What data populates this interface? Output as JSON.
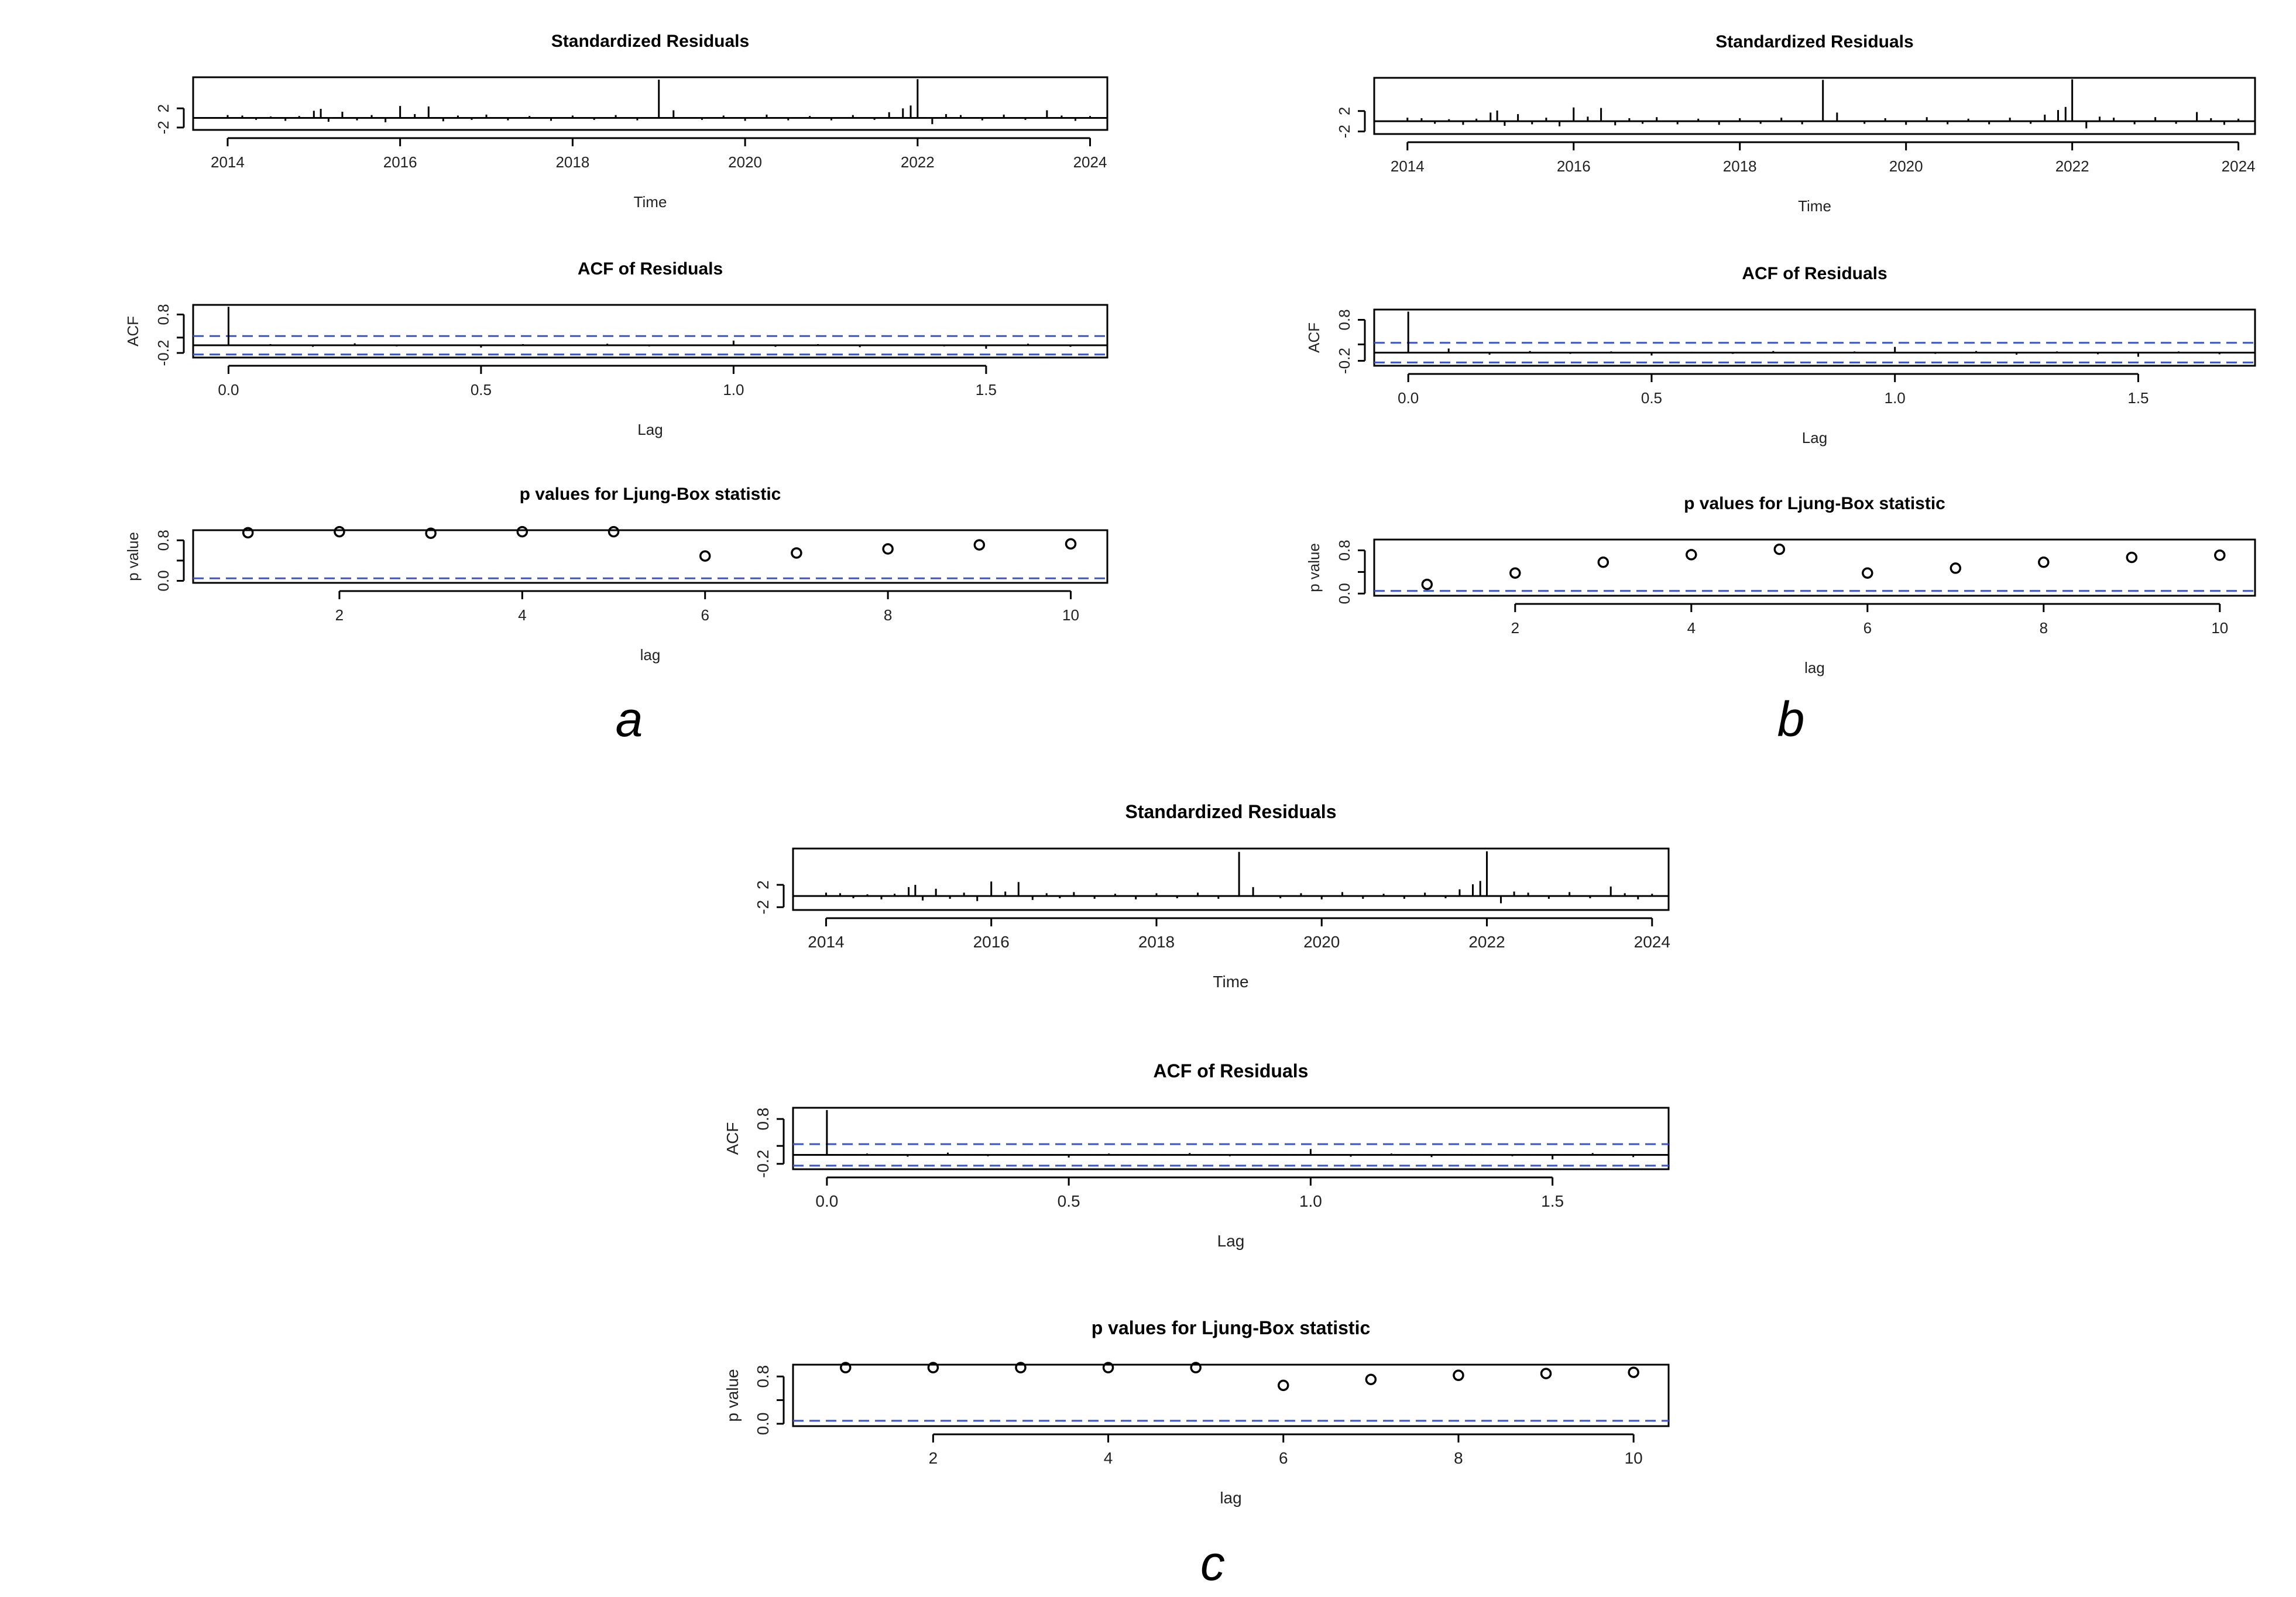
{
  "chart_data": [
    {
      "panel_label": "a",
      "plots": [
        {
          "type": "bar",
          "kind": "residuals",
          "title": "Standardized Residuals",
          "xlabel": "Time",
          "ylabel": "",
          "xlim": [
            2013.6,
            2024.2
          ],
          "ylim": [
            -2.5,
            8.5
          ],
          "xticks": [
            2014,
            2016,
            2018,
            2020,
            2022,
            2024
          ],
          "xtick_labels": [
            "2014",
            "2016",
            "2018",
            "2020",
            "2022",
            "2024"
          ],
          "yticks": [
            -2,
            2
          ],
          "ytick_labels": [
            "-2",
            "2"
          ],
          "spikes": {
            "x": [
              2014.0,
              2014.17,
              2014.33,
              2014.5,
              2014.67,
              2014.83,
              2015.0,
              2015.08,
              2015.17,
              2015.33,
              2015.5,
              2015.67,
              2015.83,
              2016.0,
              2016.17,
              2016.33,
              2016.5,
              2016.67,
              2016.83,
              2017.0,
              2017.25,
              2017.5,
              2017.75,
              2018.0,
              2018.25,
              2018.5,
              2018.75,
              2019.0,
              2019.17,
              2019.5,
              2019.75,
              2020.0,
              2020.25,
              2020.5,
              2020.75,
              2021.0,
              2021.25,
              2021.5,
              2021.67,
              2021.83,
              2021.92,
              2022.0,
              2022.17,
              2022.33,
              2022.5,
              2022.75,
              2023.0,
              2023.25,
              2023.5,
              2023.67,
              2023.83,
              2024.0
            ],
            "y": [
              0.6,
              0.5,
              -0.4,
              0.3,
              -0.6,
              0.4,
              1.5,
              1.9,
              -0.8,
              1.3,
              -0.5,
              0.6,
              -0.9,
              2.5,
              0.8,
              2.4,
              -0.7,
              0.5,
              -0.4,
              0.7,
              -0.5,
              0.4,
              -0.6,
              0.5,
              -0.4,
              0.6,
              -0.5,
              8.0,
              1.6,
              -0.4,
              0.5,
              -0.6,
              0.7,
              -0.5,
              0.4,
              -0.5,
              0.6,
              -0.4,
              1.2,
              2.0,
              2.6,
              8.1,
              -1.3,
              0.8,
              0.6,
              -0.5,
              0.7,
              -0.4,
              1.6,
              0.5,
              -0.6,
              0.4
            ]
          }
        },
        {
          "type": "bar",
          "kind": "acf",
          "title": "ACF of Residuals",
          "xlabel": "Lag",
          "ylabel": "ACF",
          "xlim": [
            -0.07,
            1.74
          ],
          "ylim": [
            -0.32,
            1.05
          ],
          "xticks": [
            0.0,
            0.5,
            1.0,
            1.5
          ],
          "xtick_labels": [
            "0.0",
            "0.5",
            "1.0",
            "1.5"
          ],
          "yticks": [
            -0.2,
            0.2,
            0.8
          ],
          "ytick_labels": [
            "-0.2",
            "",
            "0.8"
          ],
          "ci": 0.24,
          "spikes": {
            "x": [
              0.0,
              0.083,
              0.167,
              0.25,
              0.333,
              0.417,
              0.5,
              0.583,
              0.667,
              0.75,
              0.833,
              0.917,
              1.0,
              1.083,
              1.167,
              1.25,
              1.333,
              1.417,
              1.5,
              1.583,
              1.667
            ],
            "y": [
              1.0,
              0.03,
              -0.04,
              0.05,
              -0.03,
              0.02,
              -0.06,
              0.03,
              -0.02,
              0.04,
              -0.03,
              0.02,
              0.12,
              -0.04,
              0.03,
              -0.05,
              0.02,
              -0.03,
              -0.09,
              0.04,
              -0.04
            ]
          }
        },
        {
          "type": "scatter",
          "kind": "ljungbox",
          "title": "p values for Ljung-Box statistic",
          "xlabel": "lag",
          "ylabel": "p value",
          "xlim": [
            0.4,
            10.4
          ],
          "ylim": [
            -0.04,
            1.0
          ],
          "xticks": [
            2,
            4,
            6,
            8,
            10
          ],
          "xtick_labels": [
            "2",
            "4",
            "6",
            "8",
            "10"
          ],
          "yticks": [
            0.0,
            0.4,
            0.8
          ],
          "ytick_labels": [
            "0.0",
            "",
            "0.8"
          ],
          "ci": 0.05,
          "points": {
            "x": [
              1,
              2,
              3,
              4,
              5,
              6,
              7,
              8,
              9,
              10
            ],
            "y": [
              0.95,
              0.97,
              0.94,
              0.97,
              0.97,
              0.49,
              0.55,
              0.63,
              0.71,
              0.73
            ]
          }
        }
      ]
    },
    {
      "panel_label": "b",
      "plots": [
        {
          "type": "bar",
          "kind": "residuals",
          "title": "Standardized Residuals",
          "xlabel": "Time",
          "ylabel": "",
          "xlim": [
            2013.6,
            2024.2
          ],
          "ylim": [
            -2.5,
            8.5
          ],
          "xticks": [
            2014,
            2016,
            2018,
            2020,
            2022,
            2024
          ],
          "xtick_labels": [
            "2014",
            "2016",
            "2018",
            "2020",
            "2022",
            "2024"
          ],
          "yticks": [
            -2,
            2
          ],
          "ytick_labels": [
            "-2",
            "2"
          ],
          "spikes": {
            "x": [
              2014.0,
              2014.17,
              2014.33,
              2014.5,
              2014.67,
              2014.83,
              2015.0,
              2015.08,
              2015.17,
              2015.33,
              2015.5,
              2015.67,
              2015.83,
              2016.0,
              2016.17,
              2016.33,
              2016.5,
              2016.67,
              2016.83,
              2017.0,
              2017.25,
              2017.5,
              2017.75,
              2018.0,
              2018.25,
              2018.5,
              2018.75,
              2019.0,
              2019.17,
              2019.5,
              2019.75,
              2020.0,
              2020.25,
              2020.5,
              2020.75,
              2021.0,
              2021.25,
              2021.5,
              2021.67,
              2021.83,
              2021.92,
              2022.0,
              2022.17,
              2022.33,
              2022.5,
              2022.75,
              2023.0,
              2023.25,
              2023.5,
              2023.67,
              2023.83,
              2024.0
            ],
            "y": [
              0.7,
              0.6,
              -0.5,
              0.4,
              -0.7,
              0.5,
              1.7,
              2.1,
              -0.9,
              1.4,
              -0.6,
              0.7,
              -1.0,
              2.7,
              0.9,
              2.6,
              -0.8,
              0.6,
              -0.5,
              0.8,
              -0.6,
              0.5,
              -0.7,
              0.6,
              -0.5,
              0.7,
              -0.6,
              8.1,
              1.7,
              -0.5,
              0.6,
              -0.7,
              0.8,
              -0.6,
              0.5,
              -0.6,
              0.7,
              -0.5,
              1.3,
              2.2,
              2.8,
              8.2,
              -1.4,
              0.9,
              0.7,
              -0.6,
              0.8,
              -0.5,
              1.8,
              0.6,
              -0.7,
              0.5
            ]
          }
        },
        {
          "type": "bar",
          "kind": "acf",
          "title": "ACF of Residuals",
          "xlabel": "Lag",
          "ylabel": "ACF",
          "xlim": [
            -0.07,
            1.74
          ],
          "ylim": [
            -0.32,
            1.05
          ],
          "xticks": [
            0.0,
            0.5,
            1.0,
            1.5
          ],
          "xtick_labels": [
            "0.0",
            "0.5",
            "1.0",
            "1.5"
          ],
          "yticks": [
            -0.2,
            0.2,
            0.8
          ],
          "ytick_labels": [
            "-0.2",
            "",
            "0.8"
          ],
          "ci": 0.24,
          "spikes": {
            "x": [
              0.0,
              0.083,
              0.167,
              0.25,
              0.333,
              0.417,
              0.5,
              0.583,
              0.667,
              0.75,
              0.833,
              0.917,
              1.0,
              1.083,
              1.167,
              1.25,
              1.333,
              1.417,
              1.5,
              1.583,
              1.667
            ],
            "y": [
              1.0,
              0.1,
              -0.05,
              0.04,
              -0.03,
              0.03,
              -0.07,
              0.02,
              -0.03,
              0.04,
              -0.02,
              0.03,
              0.14,
              -0.03,
              0.04,
              -0.05,
              0.03,
              -0.04,
              -0.1,
              0.03,
              -0.04
            ]
          }
        },
        {
          "type": "scatter",
          "kind": "ljungbox",
          "title": "p values for Ljung-Box statistic",
          "xlabel": "lag",
          "ylabel": "p value",
          "xlim": [
            0.4,
            10.4
          ],
          "ylim": [
            -0.04,
            1.0
          ],
          "xticks": [
            2,
            4,
            6,
            8,
            10
          ],
          "xtick_labels": [
            "2",
            "4",
            "6",
            "8",
            "10"
          ],
          "yticks": [
            0.0,
            0.4,
            0.8
          ],
          "ytick_labels": [
            "0.0",
            "",
            "0.8"
          ],
          "ci": 0.05,
          "points": {
            "x": [
              1,
              2,
              3,
              4,
              5,
              6,
              7,
              8,
              9,
              10
            ],
            "y": [
              0.17,
              0.38,
              0.58,
              0.72,
              0.82,
              0.38,
              0.47,
              0.58,
              0.67,
              0.71
            ]
          }
        }
      ]
    },
    {
      "panel_label": "c",
      "plots": [
        {
          "type": "bar",
          "kind": "residuals",
          "title": "Standardized Residuals",
          "xlabel": "Time",
          "ylabel": "",
          "xlim": [
            2013.6,
            2024.2
          ],
          "ylim": [
            -2.5,
            8.5
          ],
          "xticks": [
            2014,
            2016,
            2018,
            2020,
            2022,
            2024
          ],
          "xtick_labels": [
            "2014",
            "2016",
            "2018",
            "2020",
            "2022",
            "2024"
          ],
          "yticks": [
            -2,
            2
          ],
          "ytick_labels": [
            "-2",
            "2"
          ],
          "spikes": {
            "x": [
              2014.0,
              2014.17,
              2014.33,
              2014.5,
              2014.67,
              2014.83,
              2015.0,
              2015.08,
              2015.17,
              2015.33,
              2015.5,
              2015.67,
              2015.83,
              2016.0,
              2016.17,
              2016.33,
              2016.5,
              2016.67,
              2016.83,
              2017.0,
              2017.25,
              2017.5,
              2017.75,
              2018.0,
              2018.25,
              2018.5,
              2018.75,
              2019.0,
              2019.17,
              2019.5,
              2019.75,
              2020.0,
              2020.25,
              2020.5,
              2020.75,
              2021.0,
              2021.25,
              2021.5,
              2021.67,
              2021.83,
              2021.92,
              2022.0,
              2022.17,
              2022.33,
              2022.5,
              2022.75,
              2023.0,
              2023.25,
              2023.5,
              2023.67,
              2023.83,
              2024.0
            ],
            "y": [
              0.6,
              0.5,
              -0.4,
              0.3,
              -0.6,
              0.4,
              1.6,
              2.0,
              -0.8,
              1.3,
              -0.5,
              0.6,
              -0.9,
              2.6,
              0.8,
              2.5,
              -0.7,
              0.5,
              -0.4,
              0.7,
              -0.5,
              0.4,
              -0.6,
              0.5,
              -0.4,
              0.6,
              -0.5,
              7.9,
              1.6,
              -0.4,
              0.5,
              -0.6,
              0.7,
              -0.5,
              0.4,
              -0.5,
              0.6,
              -0.4,
              1.2,
              2.1,
              2.7,
              8.0,
              -1.3,
              0.8,
              0.6,
              -0.5,
              0.7,
              -0.4,
              1.7,
              0.5,
              -0.6,
              0.4
            ]
          }
        },
        {
          "type": "bar",
          "kind": "acf",
          "title": "ACF of Residuals",
          "xlabel": "Lag",
          "ylabel": "ACF",
          "xlim": [
            -0.07,
            1.74
          ],
          "ylim": [
            -0.32,
            1.05
          ],
          "xticks": [
            0.0,
            0.5,
            1.0,
            1.5
          ],
          "xtick_labels": [
            "0.0",
            "0.5",
            "1.0",
            "1.5"
          ],
          "yticks": [
            -0.2,
            0.2,
            0.8
          ],
          "ytick_labels": [
            "-0.2",
            "",
            "0.8"
          ],
          "ci": 0.24,
          "spikes": {
            "x": [
              0.0,
              0.083,
              0.167,
              0.25,
              0.333,
              0.417,
              0.5,
              0.583,
              0.667,
              0.75,
              0.833,
              0.917,
              1.0,
              1.083,
              1.167,
              1.25,
              1.333,
              1.417,
              1.5,
              1.583,
              1.667
            ],
            "y": [
              1.0,
              0.03,
              -0.04,
              0.05,
              -0.03,
              0.02,
              -0.06,
              0.03,
              -0.02,
              0.04,
              -0.03,
              0.02,
              0.13,
              -0.04,
              0.03,
              -0.05,
              0.02,
              -0.03,
              -0.1,
              0.04,
              -0.05
            ]
          }
        },
        {
          "type": "scatter",
          "kind": "ljungbox",
          "title": "p values for Ljung-Box statistic",
          "xlabel": "lag",
          "ylabel": "p value",
          "xlim": [
            0.4,
            10.4
          ],
          "ylim": [
            -0.04,
            1.0
          ],
          "xticks": [
            2,
            4,
            6,
            8,
            10
          ],
          "xtick_labels": [
            "2",
            "4",
            "6",
            "8",
            "10"
          ],
          "yticks": [
            0.0,
            0.4,
            0.8
          ],
          "ytick_labels": [
            "0.0",
            "",
            "0.8"
          ],
          "ci": 0.05,
          "points": {
            "x": [
              1,
              2,
              3,
              4,
              5,
              6,
              7,
              8,
              9,
              10
            ],
            "y": [
              0.95,
              0.95,
              0.95,
              0.95,
              0.95,
              0.65,
              0.75,
              0.82,
              0.85,
              0.87
            ]
          }
        }
      ]
    }
  ],
  "colors": {
    "ci_line": "#3a55c8",
    "ink": "#000000"
  }
}
